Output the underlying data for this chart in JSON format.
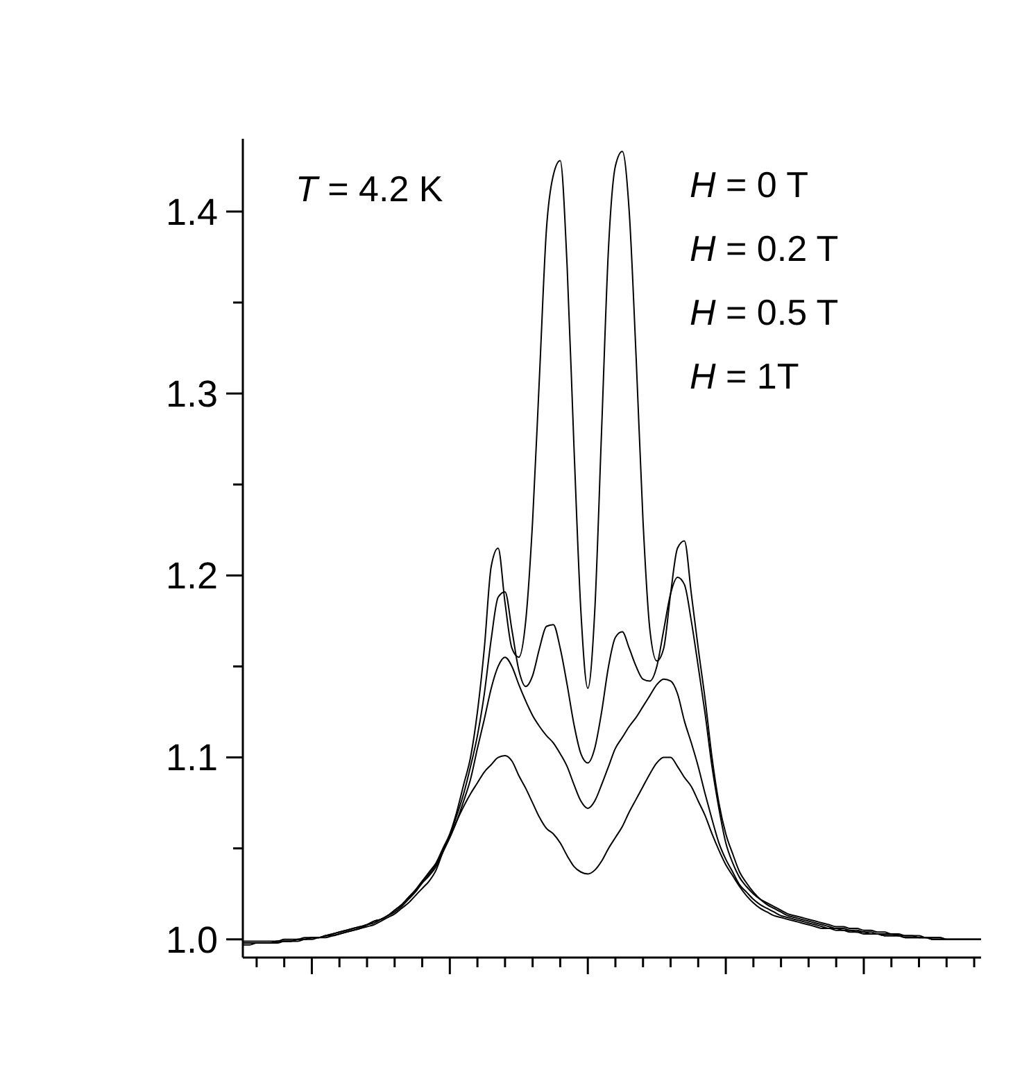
{
  "chart_data": {
    "type": "line",
    "annotations": [
      "T = 4.2 K",
      "H = 0 T",
      "H = 0.2 T",
      "H = 0.5 T",
      "H = 1T"
    ],
    "marker": "none",
    "line_style": "solid",
    "tick_labels": "y",
    "categories": [
      null,
      null,
      null,
      null,
      null,
      null,
      null,
      null,
      null,
      null,
      null,
      null,
      null,
      null,
      null,
      null,
      null,
      null,
      null,
      null,
      null,
      null,
      null,
      null,
      null,
      null,
      null,
      null,
      null,
      null,
      null,
      null,
      null,
      null,
      null,
      null,
      null,
      null,
      null,
      null,
      null,
      null,
      null,
      null,
      null,
      null,
      null,
      null,
      null,
      null,
      null,
      null,
      null,
      null,
      null,
      null,
      null,
      null,
      null,
      null,
      null,
      null,
      null,
      null,
      null,
      null,
      null,
      null,
      null,
      null,
      null,
      null,
      null,
      null,
      null,
      null,
      null,
      null,
      null,
      null,
      null,
      null,
      null,
      null,
      null,
      null,
      null,
      null,
      null,
      null,
      null,
      null,
      null,
      null,
      null,
      null,
      null,
      null,
      null,
      null,
      null,
      null,
      null,
      null,
      null,
      null,
      null,
      null
    ],
    "ylim": [
      0.99,
      1.44
    ],
    "yticks": [
      {
        "value": 1,
        "label": "1.0"
      },
      {
        "value": 1.05,
        "label": null
      },
      1.1,
      {
        "value": 1.15,
        "label": null
      },
      1.2,
      {
        "value": 1.25,
        "label": null
      },
      1.3,
      {
        "value": 1.35,
        "label": null
      },
      1.4
    ],
    "series": [
      {
        "color": "#000000",
        "values": [
          0.998,
          0.998,
          0.998,
          0.998,
          0.998,
          0.999,
          0.999,
          0.999,
          1.0,
          1.0,
          1.001,
          1.001,
          1.002,
          1.003,
          1.004,
          1.005,
          1.006,
          1.007,
          1.008,
          1.01,
          1.011,
          1.013,
          1.016,
          1.019,
          1.023,
          1.027,
          1.032,
          1.037,
          1.042,
          1.05,
          1.058,
          1.07,
          1.085,
          1.1,
          1.125,
          1.16,
          1.205,
          1.215,
          1.185,
          1.16,
          1.155,
          1.175,
          1.23,
          1.31,
          1.39,
          1.42,
          1.428,
          1.37,
          1.27,
          1.18,
          1.138,
          1.18,
          1.28,
          1.38,
          1.425,
          1.433,
          1.4,
          1.32,
          1.23,
          1.17,
          1.153,
          1.16,
          1.19,
          1.215,
          1.219,
          1.19,
          1.16,
          1.132,
          1.1,
          1.075,
          1.058,
          1.047,
          1.037,
          1.031,
          1.026,
          1.022,
          1.019,
          1.017,
          1.015,
          1.013,
          1.012,
          1.011,
          1.01,
          1.009,
          1.008,
          1.007,
          1.006,
          1.006,
          1.005,
          1.005,
          1.004,
          1.004,
          1.003,
          1.003,
          1.003,
          1.002,
          1.002,
          1.002,
          1.001,
          1.001,
          1.001,
          1.001,
          1.0,
          1.0,
          1.0,
          1.0,
          1.0,
          1.0
        ]
      },
      {
        "color": "#000000",
        "values": [
          0.998,
          0.998,
          0.998,
          0.998,
          0.998,
          0.999,
          0.999,
          0.999,
          1.0,
          1.0,
          1.001,
          1.001,
          1.002,
          1.003,
          1.004,
          1.005,
          1.006,
          1.007,
          1.008,
          1.01,
          1.011,
          1.013,
          1.016,
          1.019,
          1.023,
          1.027,
          1.032,
          1.036,
          1.041,
          1.049,
          1.057,
          1.068,
          1.08,
          1.095,
          1.112,
          1.135,
          1.165,
          1.188,
          1.191,
          1.17,
          1.148,
          1.139,
          1.145,
          1.16,
          1.172,
          1.173,
          1.16,
          1.14,
          1.118,
          1.102,
          1.097,
          1.105,
          1.125,
          1.15,
          1.166,
          1.169,
          1.16,
          1.15,
          1.143,
          1.142,
          1.15,
          1.17,
          1.19,
          1.199,
          1.195,
          1.175,
          1.15,
          1.124,
          1.095,
          1.072,
          1.053,
          1.042,
          1.034,
          1.029,
          1.025,
          1.022,
          1.02,
          1.018,
          1.016,
          1.014,
          1.013,
          1.012,
          1.011,
          1.01,
          1.009,
          1.008,
          1.007,
          1.007,
          1.006,
          1.006,
          1.005,
          1.005,
          1.004,
          1.004,
          1.003,
          1.003,
          1.002,
          1.002,
          1.002,
          1.001,
          1.001,
          1.001,
          1.0,
          1.0,
          1.0,
          1.0,
          1.0,
          1.0
        ]
      },
      {
        "color": "#000000",
        "values": [
          0.997,
          0.997,
          0.998,
          0.998,
          0.998,
          0.998,
          0.999,
          0.999,
          0.999,
          1.0,
          1.0,
          1.001,
          1.001,
          1.002,
          1.003,
          1.004,
          1.005,
          1.006,
          1.008,
          1.009,
          1.011,
          1.013,
          1.015,
          1.018,
          1.022,
          1.026,
          1.031,
          1.035,
          1.04,
          1.048,
          1.056,
          1.065,
          1.076,
          1.088,
          1.105,
          1.121,
          1.138,
          1.15,
          1.155,
          1.15,
          1.14,
          1.131,
          1.123,
          1.117,
          1.112,
          1.108,
          1.102,
          1.095,
          1.085,
          1.076,
          1.072,
          1.076,
          1.085,
          1.095,
          1.105,
          1.111,
          1.117,
          1.122,
          1.128,
          1.134,
          1.14,
          1.143,
          1.142,
          1.135,
          1.12,
          1.108,
          1.095,
          1.08,
          1.066,
          1.053,
          1.044,
          1.037,
          1.03,
          1.026,
          1.022,
          1.019,
          1.017,
          1.015,
          1.013,
          1.012,
          1.011,
          1.01,
          1.009,
          1.008,
          1.007,
          1.006,
          1.006,
          1.005,
          1.005,
          1.004,
          1.004,
          1.003,
          1.003,
          1.002,
          1.002,
          1.002,
          1.001,
          1.001,
          1.001,
          1.001,
          1.0,
          1.0,
          1.0,
          1.0,
          1.0,
          1.0,
          1.0,
          1.0
        ]
      },
      {
        "color": "#000000",
        "values": [
          0.999,
          0.999,
          0.999,
          0.999,
          0.999,
          0.999,
          1.0,
          1.0,
          1.0,
          1.001,
          1.001,
          1.001,
          1.002,
          1.002,
          1.003,
          1.004,
          1.005,
          1.006,
          1.007,
          1.008,
          1.01,
          1.012,
          1.014,
          1.017,
          1.02,
          1.024,
          1.028,
          1.032,
          1.038,
          1.048,
          1.056,
          1.065,
          1.073,
          1.08,
          1.086,
          1.092,
          1.096,
          1.1,
          1.101,
          1.098,
          1.09,
          1.083,
          1.075,
          1.067,
          1.061,
          1.058,
          1.053,
          1.046,
          1.04,
          1.037,
          1.036,
          1.038,
          1.043,
          1.05,
          1.056,
          1.062,
          1.07,
          1.077,
          1.084,
          1.091,
          1.097,
          1.1,
          1.1,
          1.095,
          1.089,
          1.084,
          1.076,
          1.068,
          1.058,
          1.049,
          1.041,
          1.035,
          1.029,
          1.024,
          1.02,
          1.017,
          1.015,
          1.013,
          1.012,
          1.011,
          1.01,
          1.009,
          1.008,
          1.007,
          1.006,
          1.006,
          1.005,
          1.005,
          1.004,
          1.004,
          1.003,
          1.003,
          1.003,
          1.002,
          1.002,
          1.002,
          1.001,
          1.001,
          1.001,
          1.001,
          1.0,
          1.0,
          1.0,
          1.0,
          1.0,
          1.0,
          1.0,
          1.0
        ]
      }
    ]
  }
}
